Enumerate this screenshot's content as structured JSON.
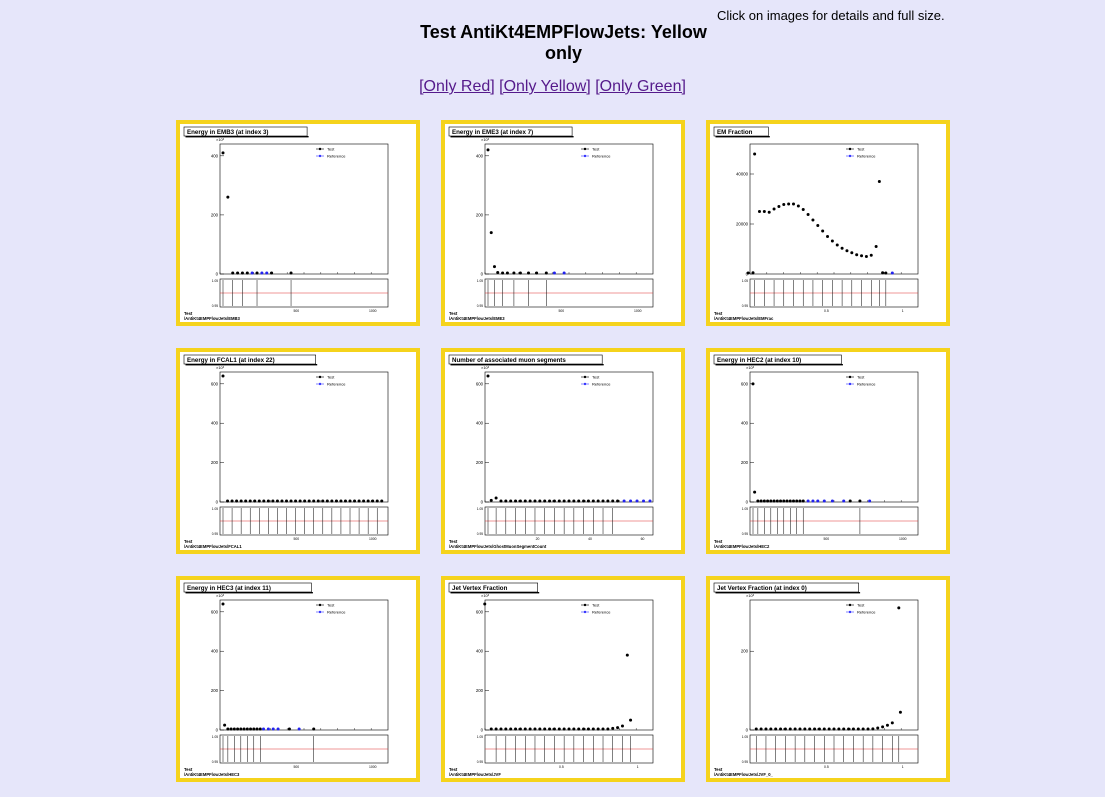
{
  "page": {
    "hint": "Click on images for details and full size.",
    "title": "Test AntiKt4EMPFlowJets: Yellow only",
    "filters": [
      {
        "label": "[Only Red]"
      },
      {
        "label": "[Only Yellow]"
      },
      {
        "label": "[Only Green]"
      }
    ],
    "border_color": "#f5d31c",
    "background_color": "#e6e6fa"
  },
  "legend": {
    "test": "Test",
    "reference": "Reference"
  },
  "chart_data": [
    {
      "type": "scatter",
      "title": "Energy in EMB3 (at index 3)",
      "exponent": "×10³",
      "path": "Test /AntiKt4EMPFlowJets/EMB3",
      "yticks": [
        0,
        200,
        400
      ],
      "ylim": [
        0,
        440
      ],
      "xticks": [
        "500",
        "1000"
      ],
      "test_y": [
        410,
        260,
        2,
        1,
        1,
        1,
        0,
        0,
        0
      ],
      "test_x": [
        0,
        0.03,
        0.06,
        0.09,
        0.12,
        0.15,
        0.21,
        0.3,
        0.42
      ],
      "ref_x": [
        0.18,
        0.24,
        0.27
      ],
      "ref_y": [
        0,
        0,
        0
      ],
      "ratio": [
        "1.05",
        "0.95"
      ]
    },
    {
      "type": "scatter",
      "title": "Energy in EME3 (at index 7)",
      "exponent": "×10³",
      "path": "Test /AntiKt4EMPFlowJets/EME3",
      "yticks": [
        0,
        200,
        400
      ],
      "ylim": [
        0,
        440
      ],
      "xticks": [
        "500",
        "1000"
      ],
      "test_y": [
        420,
        140,
        25,
        5,
        2,
        1,
        1,
        1,
        0,
        0,
        0
      ],
      "test_x": [
        0,
        0.02,
        0.04,
        0.06,
        0.09,
        0.12,
        0.16,
        0.2,
        0.25,
        0.3,
        0.36
      ],
      "ref_x": [
        0.41,
        0.47
      ],
      "ref_y": [
        0,
        0
      ],
      "ratio": [
        "1.05",
        "0.95"
      ]
    },
    {
      "type": "scatter",
      "title": "EM Fraction",
      "exponent": "",
      "path": "Test /AntiKt4EMPFlowJets/EMFrac",
      "yticks": [
        0,
        20000,
        40000
      ],
      "ylim": [
        0,
        52000
      ],
      "xticks": [
        "0.5",
        "1"
      ],
      "test_y": [
        0,
        500,
        48000,
        25000,
        25000,
        24700,
        26000,
        27000,
        27800,
        28000,
        28000,
        27200,
        25800,
        23800,
        21600,
        19400,
        17200,
        15000,
        13200,
        11600,
        10300,
        9300,
        8500,
        7700,
        7300,
        7000,
        7500,
        11000,
        37000,
        500,
        0
      ],
      "test_x": [
        -0.03,
        0,
        0.01,
        0.04,
        0.07,
        0.1,
        0.13,
        0.16,
        0.19,
        0.22,
        0.25,
        0.28,
        0.31,
        0.34,
        0.37,
        0.4,
        0.43,
        0.46,
        0.49,
        0.52,
        0.55,
        0.58,
        0.61,
        0.64,
        0.67,
        0.7,
        0.73,
        0.76,
        0.78,
        0.8,
        0.82
      ],
      "ref_x": [
        0.86
      ],
      "ref_y": [
        0
      ],
      "ratio": [
        "1.05",
        "0.95"
      ]
    },
    {
      "type": "scatter",
      "title": "Energy in FCAL1 (at index 22)",
      "exponent": "×10³",
      "path": "Test /AntiKt4EMPFlowJets/FCAL1",
      "yticks": [
        0,
        200,
        400,
        600
      ],
      "ylim": [
        0,
        660
      ],
      "xticks": [
        "500",
        "1000"
      ],
      "test_y": [
        640,
        5,
        2,
        1,
        1,
        0,
        0,
        0,
        0,
        0,
        0,
        0,
        0,
        0,
        0,
        0,
        0,
        0,
        0,
        0,
        0,
        0,
        0,
        0,
        0,
        0,
        0,
        0,
        0,
        0,
        0,
        0,
        0,
        0,
        0,
        0
      ],
      "test_x": [
        0,
        0.028,
        0.056,
        0.084,
        0.112,
        0.14,
        0.168,
        0.196,
        0.224,
        0.252,
        0.28,
        0.308,
        0.336,
        0.364,
        0.392,
        0.42,
        0.448,
        0.476,
        0.504,
        0.532,
        0.56,
        0.588,
        0.616,
        0.644,
        0.672,
        0.7,
        0.728,
        0.756,
        0.784,
        0.812,
        0.84,
        0.868,
        0.896,
        0.924,
        0.952,
        0.98
      ],
      "ref_x": [],
      "ref_y": [],
      "ratio": [
        "1.05",
        "0.95"
      ]
    },
    {
      "type": "scatter",
      "title": "Number of associated muon segments",
      "exponent": "×10³",
      "path": "Test /AntiKt4EMPFlowJets/GhostMuonSegmentCount",
      "yticks": [
        0,
        200,
        400,
        600
      ],
      "ylim": [
        0,
        660
      ],
      "xticks": [
        "20",
        "40",
        "60"
      ],
      "test_y": [
        640,
        8,
        20,
        5,
        2,
        1,
        1,
        0,
        0,
        0,
        0,
        0,
        0,
        0,
        0,
        0,
        0,
        0,
        0,
        0,
        0,
        0,
        0,
        0,
        0,
        0,
        0,
        0
      ],
      "test_x": [
        0,
        0.02,
        0.05,
        0.08,
        0.11,
        0.14,
        0.17,
        0.2,
        0.23,
        0.26,
        0.29,
        0.32,
        0.35,
        0.38,
        0.41,
        0.44,
        0.47,
        0.5,
        0.53,
        0.56,
        0.59,
        0.62,
        0.65,
        0.68,
        0.71,
        0.74,
        0.77,
        0.8
      ],
      "ref_x": [
        0.84,
        0.88,
        0.92,
        0.96,
        1.0
      ],
      "ref_y": [
        0,
        0,
        0,
        0,
        0
      ],
      "ratio": [
        "1.05",
        "0.95"
      ]
    },
    {
      "type": "scatter",
      "title": "Energy in HEC2 (at index 10)",
      "exponent": "×10³",
      "path": "Test /AntiKt4EMPFlowJets/HEC2",
      "yticks": [
        0,
        200,
        400,
        600
      ],
      "ylim": [
        0,
        660
      ],
      "xticks": [
        "500",
        "1000"
      ],
      "test_y": [
        600,
        50,
        5,
        2,
        1,
        1,
        0,
        0,
        0,
        0,
        0,
        0,
        0,
        0,
        0,
        0,
        0,
        0,
        0
      ],
      "test_x": [
        0,
        0.01,
        0.03,
        0.05,
        0.07,
        0.09,
        0.11,
        0.13,
        0.15,
        0.17,
        0.19,
        0.21,
        0.23,
        0.25,
        0.27,
        0.29,
        0.31,
        0.6,
        0.66
      ],
      "ref_x": [
        0.34,
        0.37,
        0.4,
        0.44,
        0.49,
        0.56,
        0.72
      ],
      "ref_y": [
        0,
        0,
        0,
        0,
        0,
        0,
        0
      ],
      "ratio": [
        "1.05",
        "0.95"
      ]
    },
    {
      "type": "scatter",
      "title": "Energy in HEC3 (at index 11)",
      "exponent": "×10³",
      "path": "Test /AntiKt4EMPFlowJets/HEC3",
      "yticks": [
        0,
        200,
        400,
        600
      ],
      "ylim": [
        0,
        660
      ],
      "xticks": [
        "500",
        "1000"
      ],
      "test_y": [
        640,
        25,
        3,
        1,
        1,
        1,
        0,
        0,
        0,
        0,
        0,
        0,
        0,
        0,
        0
      ],
      "test_x": [
        0,
        0.01,
        0.03,
        0.05,
        0.07,
        0.09,
        0.11,
        0.13,
        0.15,
        0.17,
        0.19,
        0.21,
        0.23,
        0.41,
        0.56
      ],
      "ref_x": [
        0.25,
        0.28,
        0.31,
        0.34,
        0.47
      ],
      "ref_y": [
        0,
        0,
        0,
        0,
        0
      ],
      "ratio": [
        "1.05",
        "0.95"
      ]
    },
    {
      "type": "scatter",
      "title": "Jet Vertex Fraction",
      "exponent": "×10³",
      "path": "Test /AntiKt4EMPFlowJets/JVF",
      "yticks": [
        0,
        200,
        400,
        600
      ],
      "ylim": [
        0,
        660
      ],
      "xticks": [
        "0.5",
        "1"
      ],
      "test_y": [
        640,
        0,
        0,
        0,
        0,
        0,
        0,
        0,
        0,
        0,
        0,
        0,
        0,
        0,
        0,
        0,
        0,
        0,
        0,
        0,
        0,
        1,
        1,
        2,
        3,
        5,
        8,
        12,
        20,
        380,
        50
      ],
      "test_x": [
        -0.02,
        0.02,
        0.05,
        0.08,
        0.11,
        0.14,
        0.17,
        0.2,
        0.23,
        0.26,
        0.29,
        0.32,
        0.35,
        0.38,
        0.41,
        0.44,
        0.47,
        0.5,
        0.53,
        0.56,
        0.59,
        0.62,
        0.65,
        0.68,
        0.71,
        0.74,
        0.77,
        0.8,
        0.83,
        0.86,
        0.88
      ],
      "ref_x": [],
      "ref_y": [],
      "ratio": [
        "1.05",
        "0.95"
      ]
    },
    {
      "type": "scatter",
      "title": "Jet Vertex Fraction (at index 0)",
      "exponent": "×10³",
      "path": "Test /AntiKt4EMPFlowJets/JVF_0_",
      "yticks": [
        0,
        200
      ],
      "ylim": [
        0,
        330
      ],
      "xticks": [
        "0.5",
        "1"
      ],
      "test_y": [
        0,
        0,
        0,
        0,
        0,
        0,
        0,
        0,
        0,
        0,
        0,
        0,
        0,
        0,
        0,
        0,
        0,
        0,
        0,
        0,
        0,
        1,
        1,
        2,
        3,
        5,
        8,
        12,
        18,
        45,
        310
      ],
      "test_x": [
        0.02,
        0.05,
        0.08,
        0.11,
        0.14,
        0.17,
        0.2,
        0.23,
        0.26,
        0.29,
        0.32,
        0.35,
        0.38,
        0.41,
        0.44,
        0.47,
        0.5,
        0.53,
        0.56,
        0.59,
        0.62,
        0.65,
        0.68,
        0.71,
        0.74,
        0.77,
        0.8,
        0.83,
        0.86,
        0.91,
        0.9
      ],
      "ref_x": [],
      "ref_y": [],
      "ratio": [
        "1.05",
        "0.95"
      ]
    }
  ]
}
